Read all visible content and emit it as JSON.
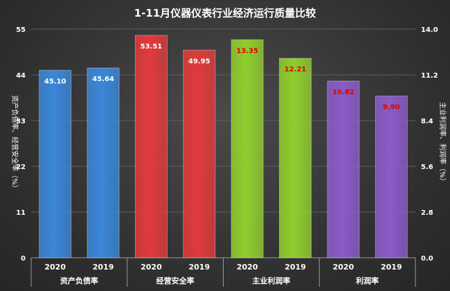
{
  "chart_data": {
    "type": "bar",
    "title": "1-11月仪器仪表行业经济运行质量比较",
    "groups": [
      "资产负债率",
      "经营安全率",
      "主业利润率",
      "利润率"
    ],
    "subcategories": [
      "2020",
      "2019"
    ],
    "bars": [
      {
        "group": "资产负债率",
        "year": "2020",
        "value": 45.1,
        "label": "45.10",
        "axis": "left",
        "color": "#3a87d8"
      },
      {
        "group": "资产负债率",
        "year": "2019",
        "value": 45.64,
        "label": "45.64",
        "axis": "left",
        "color": "#3a87d8"
      },
      {
        "group": "经营安全率",
        "year": "2020",
        "value": 53.51,
        "label": "53.51",
        "axis": "left",
        "color": "#e03b3b"
      },
      {
        "group": "经营安全率",
        "year": "2019",
        "value": 49.95,
        "label": "49.95",
        "axis": "left",
        "color": "#e03b3b"
      },
      {
        "group": "主业利润率",
        "year": "2020",
        "value": 13.35,
        "label": "13.35",
        "axis": "right",
        "color": "#8fce2e"
      },
      {
        "group": "主业利润率",
        "year": "2019",
        "value": 12.21,
        "label": "12.21",
        "axis": "right",
        "color": "#8fce2e"
      },
      {
        "group": "利润率",
        "year": "2020",
        "value": 10.82,
        "label": "10.82",
        "axis": "right",
        "color": "#8a5cc8"
      },
      {
        "group": "利润率",
        "year": "2019",
        "value": 9.9,
        "label": "9.90",
        "axis": "right",
        "color": "#8a5cc8"
      }
    ],
    "left_axis": {
      "label": "资产负债率、经营安全率（%）",
      "ticks": [
        "0",
        "11",
        "22",
        "33",
        "44",
        "55"
      ],
      "ylim": [
        0,
        55
      ]
    },
    "right_axis": {
      "label": "主业利润率、利润率（%）",
      "ticks": [
        "0.0",
        "2.8",
        "5.6",
        "8.4",
        "11.2",
        "14.0"
      ],
      "ylim": [
        0,
        14
      ]
    },
    "label_colors": {
      "left": "#ffffff",
      "right": "#e00000"
    },
    "grid": true,
    "legend": "none"
  }
}
